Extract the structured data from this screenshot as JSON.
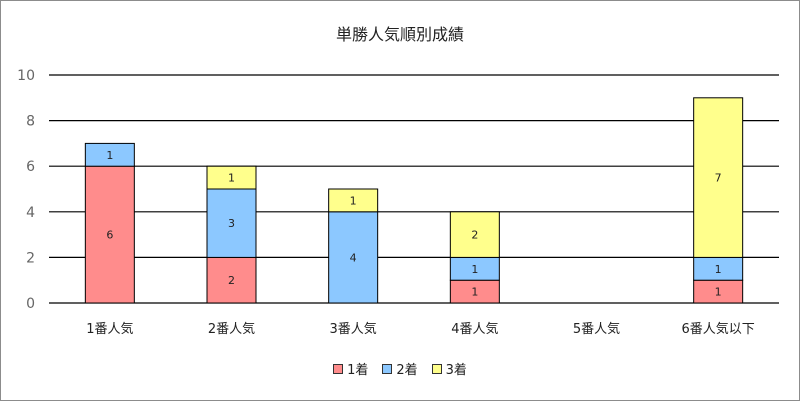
{
  "chart_data": {
    "type": "bar",
    "stacked": true,
    "title": "単勝人気順別成績",
    "categories": [
      "1番人気",
      "2番人気",
      "3番人気",
      "4番人気",
      "5番人気",
      "6番人気以下"
    ],
    "series": [
      {
        "name": "1着",
        "color": "#ff8c8c",
        "values": [
          6,
          2,
          0,
          1,
          0,
          1
        ]
      },
      {
        "name": "2着",
        "color": "#8cc8ff",
        "values": [
          1,
          3,
          4,
          1,
          0,
          1
        ]
      },
      {
        "name": "3着",
        "color": "#ffff8c",
        "values": [
          0,
          1,
          1,
          2,
          0,
          7
        ]
      }
    ],
    "ylim": [
      0,
      10
    ],
    "yticks": [
      0,
      2,
      4,
      6,
      8,
      10
    ],
    "grid": true,
    "legend": "bottom"
  }
}
